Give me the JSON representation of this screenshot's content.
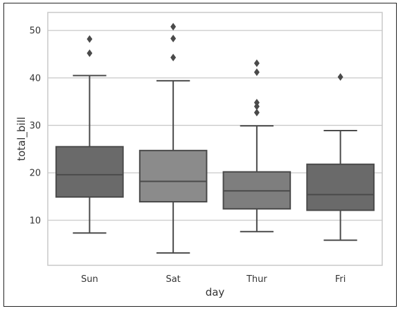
{
  "chart_data": {
    "type": "box",
    "title": "",
    "xlabel": "day",
    "ylabel": "total_bill",
    "ylim": [
      0.5,
      53.8
    ],
    "yticks": [
      10,
      20,
      30,
      40,
      50
    ],
    "grid": true,
    "categories": [
      "Sun",
      "Sat",
      "Thur",
      "Fri"
    ],
    "boxes": [
      {
        "category": "Sun",
        "whisker_low": 7.3,
        "q1": 14.9,
        "median": 19.6,
        "q3": 25.5,
        "whisker_high": 40.5,
        "outliers": [
          45.2,
          48.2
        ],
        "color": "#6a6a6a"
      },
      {
        "category": "Sat",
        "whisker_low": 3.1,
        "q1": 13.9,
        "median": 18.2,
        "q3": 24.7,
        "whisker_high": 39.4,
        "outliers": [
          44.3,
          48.3,
          50.8
        ],
        "color": "#8b8b8b"
      },
      {
        "category": "Thur",
        "whisker_low": 7.6,
        "q1": 12.4,
        "median": 16.2,
        "q3": 20.2,
        "whisker_high": 29.9,
        "outliers": [
          32.7,
          34.0,
          34.8,
          41.2,
          43.1
        ],
        "color": "#7e7e7e"
      },
      {
        "category": "Fri",
        "whisker_low": 5.8,
        "q1": 12.1,
        "median": 15.4,
        "q3": 21.8,
        "whisker_high": 28.9,
        "outliers": [
          40.2
        ],
        "color": "#6a6a6a"
      }
    ],
    "colors": {
      "grid": "#c9c9c9",
      "line": "#4a4a4a",
      "spine": "#c9c9c9"
    }
  }
}
